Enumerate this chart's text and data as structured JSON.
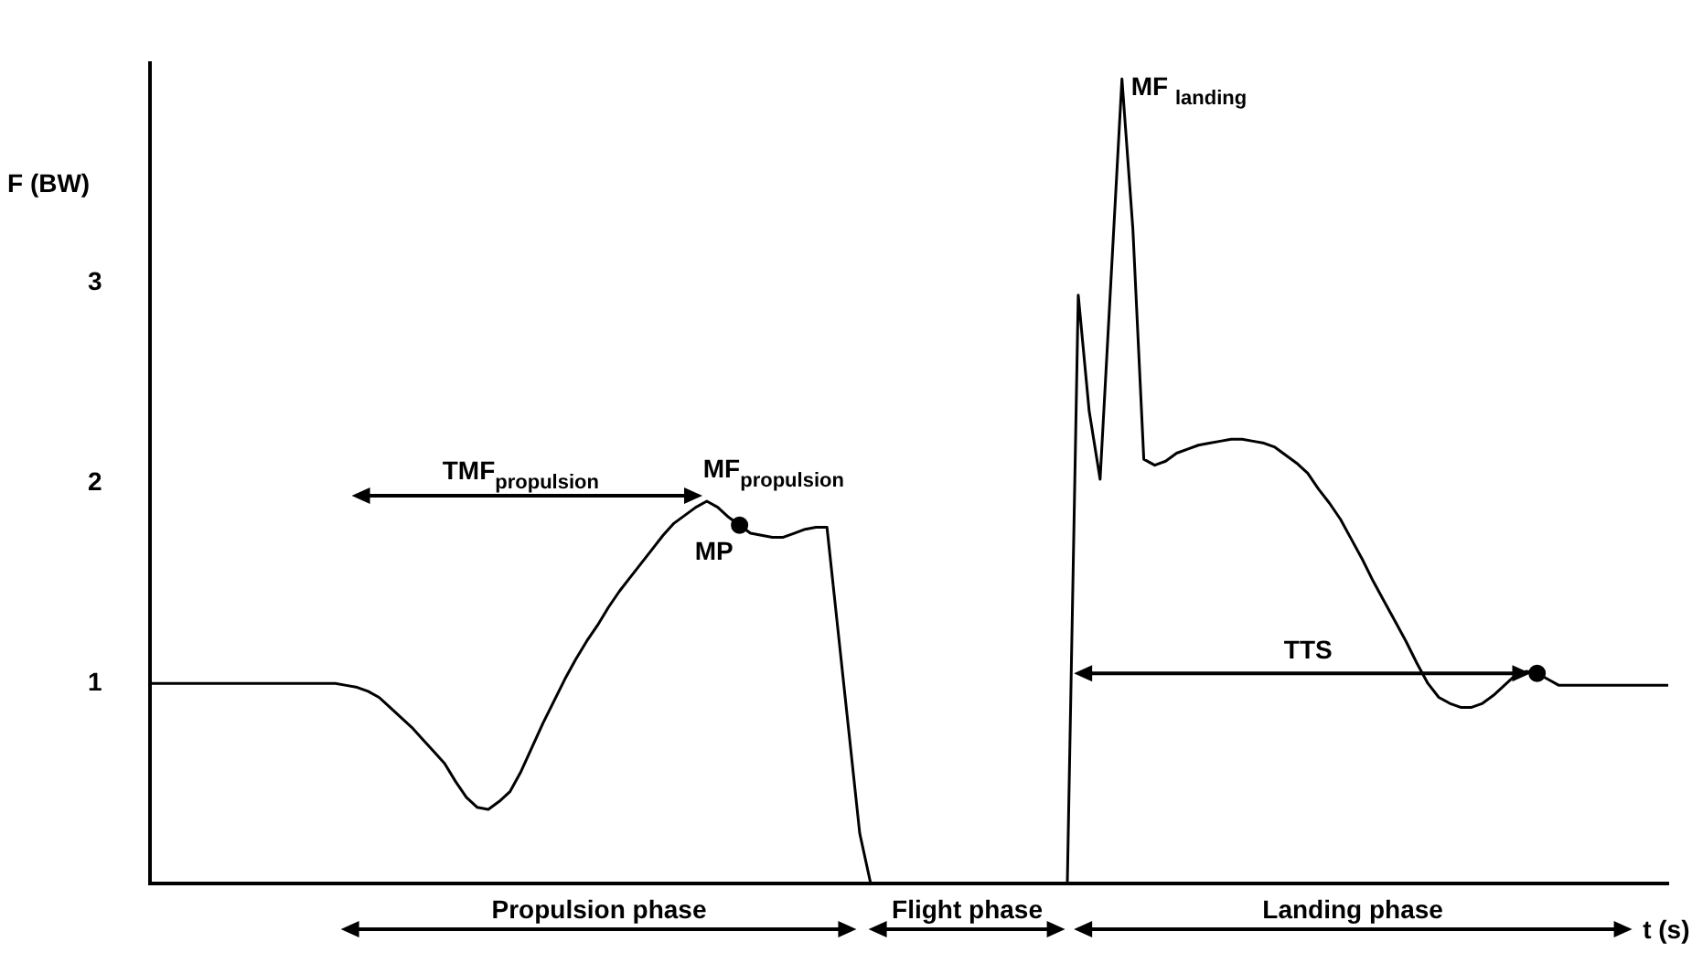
{
  "chart_data": {
    "type": "line",
    "ylabel": "F (BW)",
    "xlabel": "t (s)",
    "color": "#000000",
    "tick_labels": "y",
    "ylim": [
      0,
      4.1
    ],
    "yticks": [
      1,
      2,
      3
    ],
    "categories": [
      null,
      null,
      null,
      null,
      null,
      null,
      null,
      null,
      null,
      null,
      null,
      null,
      null,
      null,
      null,
      null,
      null,
      null,
      null,
      null,
      null,
      null,
      null,
      null,
      null,
      null,
      null,
      null,
      null,
      null,
      null,
      null,
      null,
      null,
      null,
      null,
      null,
      null,
      null,
      null,
      null,
      null,
      null,
      null,
      null,
      null,
      null,
      null,
      null,
      null,
      null,
      null,
      null,
      null,
      null,
      null,
      null,
      null,
      null,
      null,
      null,
      null,
      null,
      null,
      null,
      null,
      null,
      null,
      null,
      null,
      null,
      null,
      null,
      null,
      null,
      null,
      null,
      null,
      null,
      null,
      null,
      null,
      null,
      null,
      null,
      null,
      null,
      null,
      null,
      null,
      null,
      null,
      null,
      null,
      null,
      null,
      null,
      null,
      null,
      null,
      null,
      null,
      null,
      null,
      null,
      null,
      null,
      null,
      null,
      null,
      null,
      null,
      null,
      null,
      null,
      null,
      null,
      null,
      null,
      null,
      null,
      null,
      null,
      null,
      null,
      null,
      null,
      null,
      null,
      null,
      null,
      null,
      null,
      null,
      null,
      null,
      null,
      null,
      null,
      null
    ],
    "values": [
      1,
      1,
      1,
      1,
      1,
      1,
      1,
      1,
      1,
      1,
      1,
      1,
      1,
      1,
      1,
      1,
      1,
      1,
      0.99,
      0.98,
      0.96,
      0.93,
      0.88,
      0.83,
      0.78,
      0.72,
      0.66,
      0.6,
      0.51,
      0.43,
      0.38,
      0.37,
      0.41,
      0.46,
      0.56,
      0.68,
      0.8,
      0.91,
      1.02,
      1.12,
      1.21,
      1.29,
      1.38,
      1.46,
      1.53,
      1.6,
      1.67,
      1.74,
      1.8,
      1.84,
      1.88,
      1.91,
      1.88,
      1.83,
      1.79,
      1.75,
      1.74,
      1.73,
      1.73,
      1.75,
      1.77,
      1.78,
      1.78,
      1.27,
      0.76,
      0.25,
      0,
      0,
      0,
      0,
      0,
      0,
      0,
      0,
      0,
      0,
      0,
      0,
      0,
      0,
      0,
      0,
      0,
      0,
      0,
      2.94,
      2.36,
      2.02,
      3.02,
      4.02,
      3.27,
      2.12,
      2.09,
      2.11,
      2.15,
      2.17,
      2.19,
      2.2,
      2.21,
      2.22,
      2.22,
      2.21,
      2.2,
      2.18,
      2.14,
      2.1,
      2.05,
      1.97,
      1.9,
      1.82,
      1.72,
      1.62,
      1.51,
      1.41,
      1.31,
      1.21,
      1.1,
      1.0,
      0.93,
      0.9,
      0.88,
      0.88,
      0.9,
      0.94,
      0.99,
      1.04,
      1.06,
      1.05,
      1.02,
      0.99,
      0.99,
      0.99,
      0.99,
      0.99,
      0.99,
      0.99,
      0.99,
      0.99,
      0.99,
      0.99
    ],
    "annotations": [
      "TMF$_{propulsion}$",
      "MF$_{propulsion}$",
      "MP",
      "MF $_{landing}$",
      "TTS",
      "Propulsion phase",
      "Flight phase",
      "Landing phase"
    ]
  }
}
